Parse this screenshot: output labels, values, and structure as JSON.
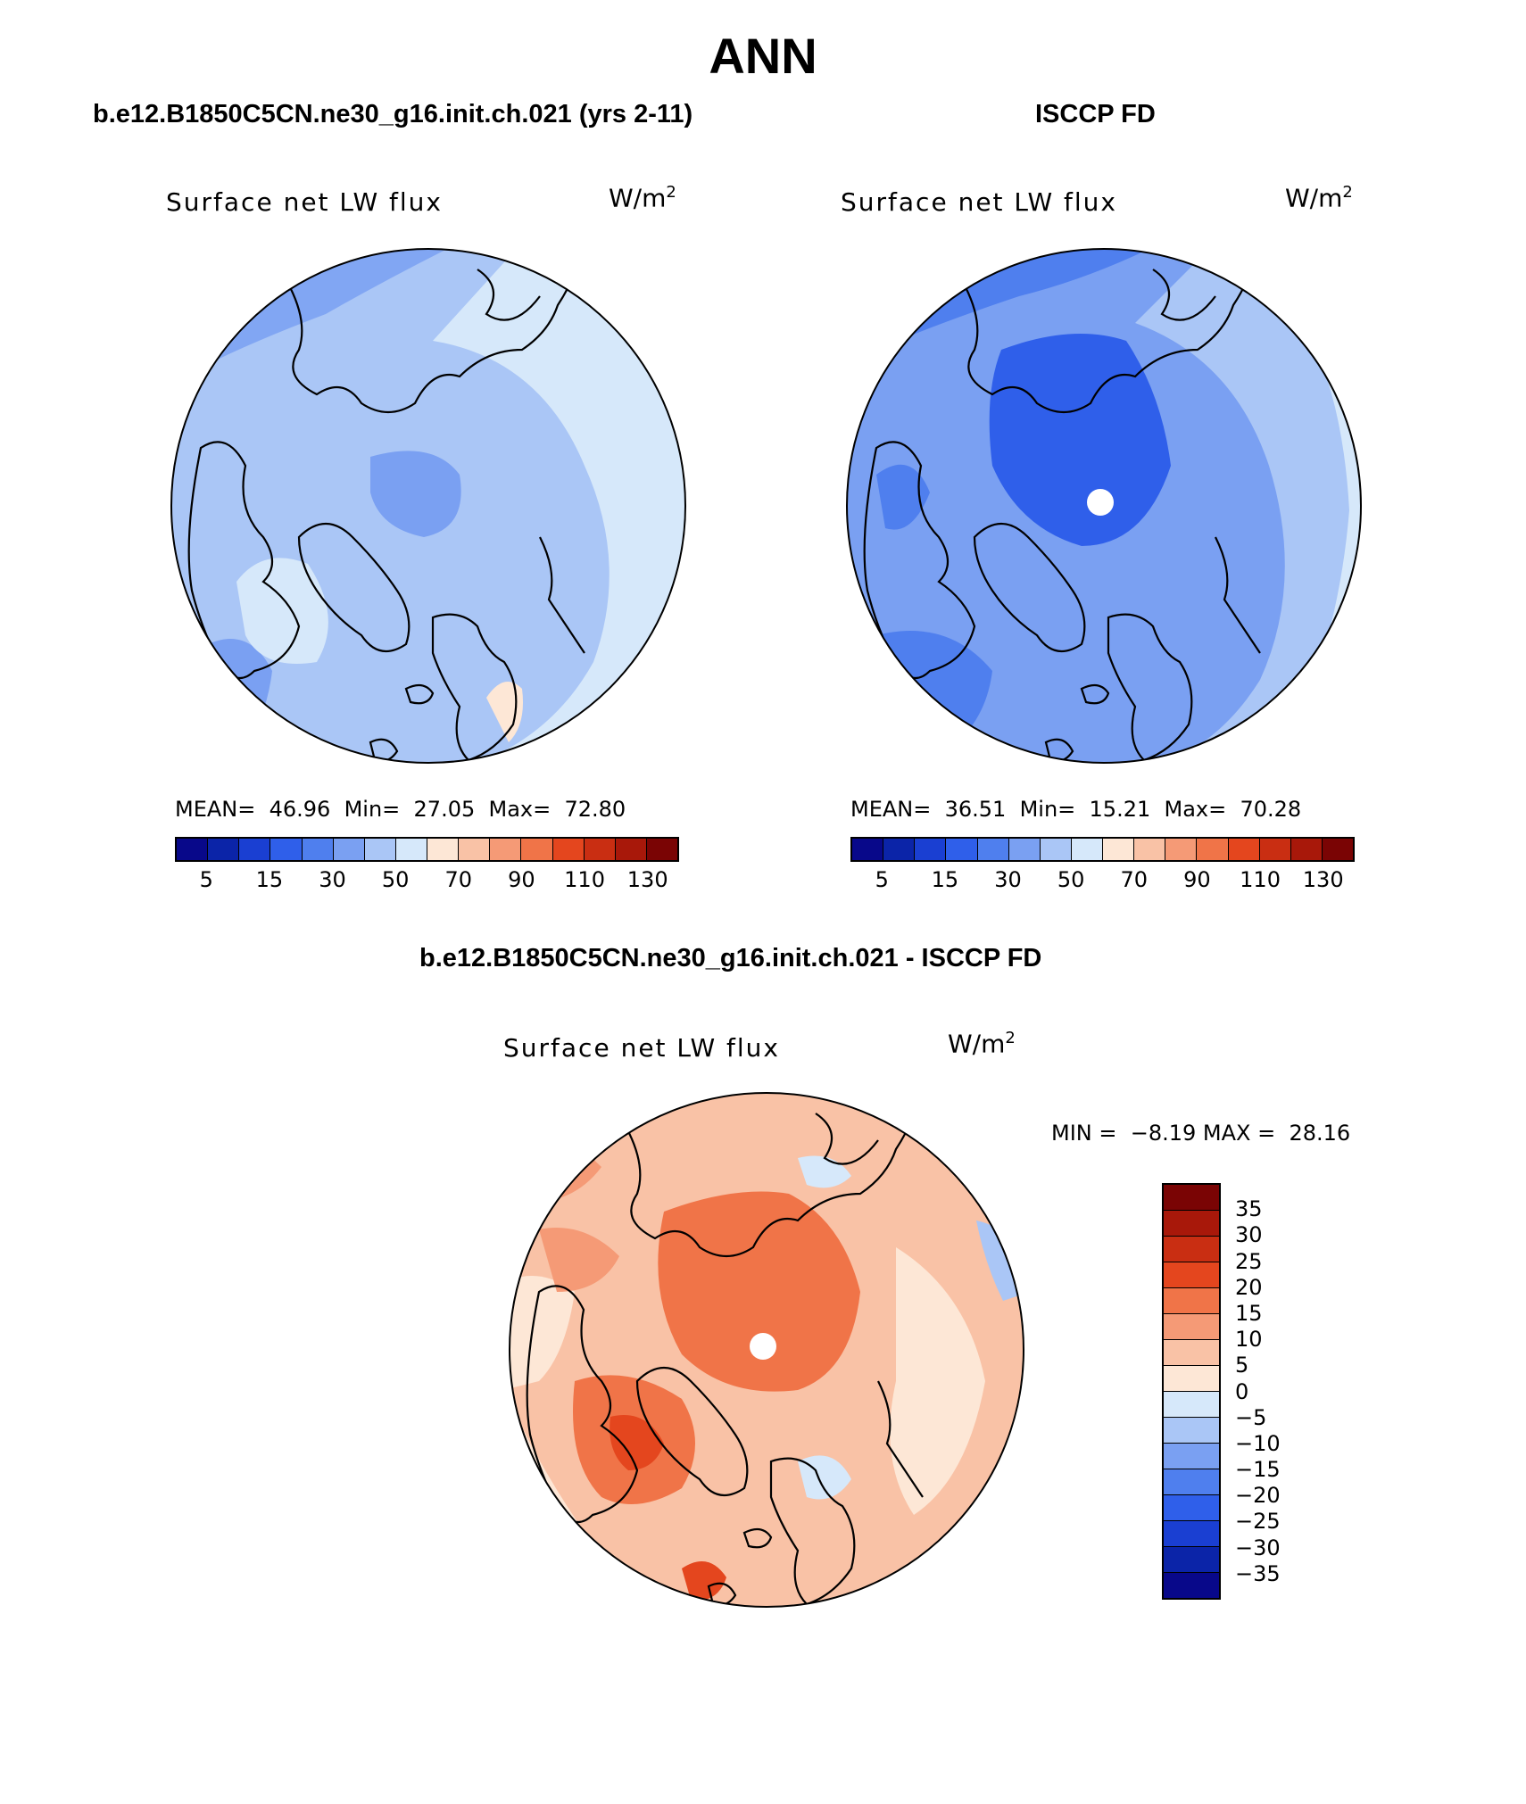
{
  "title": "ANN",
  "panels": {
    "model": {
      "title": "b.e12.B1850C5CN.ne30_g16.init.ch.021 (yrs 2-11)",
      "field": "Surface net LW flux",
      "units": "W/m",
      "units_sup": "2",
      "stats": "MEAN=  46.96  Min=  27.05  Max=  72.80"
    },
    "obs": {
      "title": "ISCCP FD",
      "field": "Surface net LW flux",
      "units": "W/m",
      "units_sup": "2",
      "stats": "MEAN=  36.51  Min=  15.21  Max=  70.28"
    },
    "diff": {
      "title": "b.e12.B1850C5CN.ne30_g16.init.ch.021 - ISCCP FD",
      "field": "Surface net LW flux",
      "units": "W/m",
      "units_sup": "2",
      "stats": "MIN =  −8.19 MAX =  28.16"
    }
  },
  "abs_colorbar": {
    "ticks": [
      "5",
      "15",
      "30",
      "50",
      "70",
      "90",
      "110",
      "130"
    ],
    "colors": [
      "#08088a",
      "#0b24a8",
      "#1a3fd2",
      "#2f5fea",
      "#4f7fee",
      "#7aa0f2",
      "#aac6f6",
      "#d6e8fa",
      "#fde7d6",
      "#f9c2a6",
      "#f59a76",
      "#f07448",
      "#e4461e",
      "#c92e12",
      "#a8180a",
      "#7a0404"
    ]
  },
  "diff_colorbar": {
    "ticks": [
      "35",
      "30",
      "25",
      "20",
      "15",
      "10",
      "5",
      "0",
      "−5",
      "−10",
      "−15",
      "−20",
      "−25",
      "−30",
      "−35"
    ],
    "colors": [
      "#7a0404",
      "#a8180a",
      "#c92e12",
      "#e4461e",
      "#f07448",
      "#f59a76",
      "#f9c2a6",
      "#fde7d6",
      "#d6e8fa",
      "#aac6f6",
      "#7aa0f2",
      "#4f7fee",
      "#2f5fea",
      "#1a3fd2",
      "#0b24a8",
      "#08088a"
    ]
  },
  "map_colors": {
    "model_bg": "#aac6f6",
    "obs_bg": "#7aa0f2",
    "diff_bg": "#f9c2a6"
  }
}
